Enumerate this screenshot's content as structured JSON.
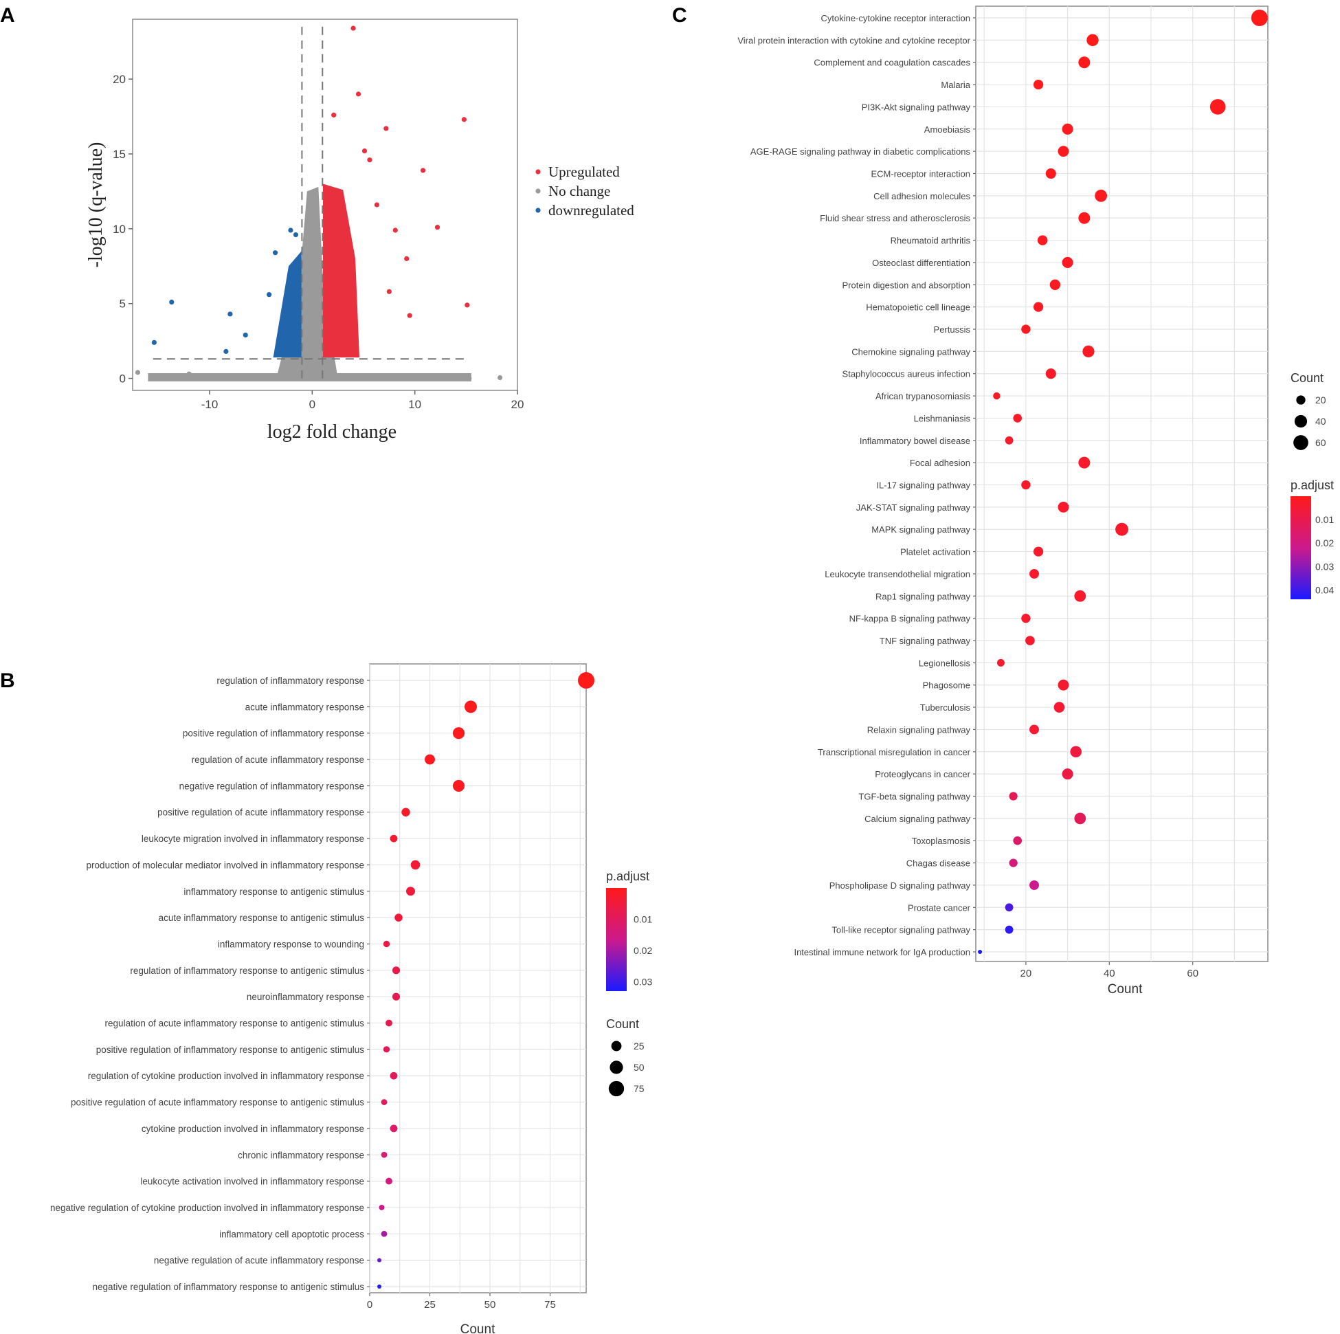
{
  "colors": {
    "up": "#e8303f",
    "nochange": "#9a9a9a",
    "down": "#2166ac",
    "grid": "#e4e4e4",
    "high_p": "#ff1a1a",
    "low_p": "#1a1aff"
  },
  "chart_data": [
    {
      "panel": "A",
      "type": "scatter",
      "xlabel": "log2 fold change",
      "ylabel": "-log10 (q-value)",
      "xlim": [
        -17.5,
        20
      ],
      "ylim": [
        -0.8,
        24
      ],
      "xticks": [
        -10,
        0,
        10,
        20
      ],
      "yticks": [
        0,
        5,
        10,
        15,
        20
      ],
      "thresholds": {
        "fc": [
          -1,
          1
        ],
        "q": 1.3
      },
      "legend": [
        {
          "label": "Upregulated",
          "key": "up"
        },
        {
          "label": "No change",
          "key": "nochange"
        },
        {
          "label": "downregulated",
          "key": "down"
        }
      ],
      "highlighted_points": [
        {
          "x": 4.0,
          "y": 23.4,
          "g": "up"
        },
        {
          "x": 4.5,
          "y": 19.0,
          "g": "up"
        },
        {
          "x": 2.1,
          "y": 17.6,
          "g": "up"
        },
        {
          "x": 7.2,
          "y": 16.7,
          "g": "up"
        },
        {
          "x": 14.8,
          "y": 17.3,
          "g": "up"
        },
        {
          "x": 10.8,
          "y": 13.9,
          "g": "up"
        },
        {
          "x": 12.2,
          "y": 10.1,
          "g": "up"
        },
        {
          "x": 15.1,
          "y": 4.9,
          "g": "up"
        },
        {
          "x": 9.5,
          "y": 4.2,
          "g": "up"
        },
        {
          "x": 5.1,
          "y": 15.2,
          "g": "up"
        },
        {
          "x": 8.1,
          "y": 9.9,
          "g": "up"
        },
        {
          "x": 9.2,
          "y": 8.0,
          "g": "up"
        },
        {
          "x": 7.5,
          "y": 5.8,
          "g": "up"
        },
        {
          "x": 6.3,
          "y": 11.6,
          "g": "up"
        },
        {
          "x": 5.6,
          "y": 14.6,
          "g": "up"
        },
        {
          "x": -13.7,
          "y": 5.1,
          "g": "down"
        },
        {
          "x": -15.4,
          "y": 2.4,
          "g": "down"
        },
        {
          "x": -8.0,
          "y": 4.3,
          "g": "down"
        },
        {
          "x": -6.5,
          "y": 2.9,
          "g": "down"
        },
        {
          "x": -8.4,
          "y": 1.8,
          "g": "down"
        },
        {
          "x": -4.2,
          "y": 5.6,
          "g": "down"
        },
        {
          "x": -3.6,
          "y": 8.4,
          "g": "down"
        },
        {
          "x": -2.1,
          "y": 9.9,
          "g": "down"
        },
        {
          "x": -1.6,
          "y": 9.6,
          "g": "down"
        },
        {
          "x": -17.0,
          "y": 0.4,
          "g": "nochange"
        },
        {
          "x": 18.3,
          "y": 0.05,
          "g": "nochange"
        },
        {
          "x": 15.3,
          "y": 0.0,
          "g": "nochange"
        },
        {
          "x": -12.0,
          "y": 0.3,
          "g": "nochange"
        }
      ]
    },
    {
      "panel": "B",
      "type": "scatter",
      "xlabel": "Count",
      "xlim": [
        0,
        90
      ],
      "xticks": [
        0,
        25,
        50,
        75
      ],
      "color_legend_title": "p.adjust",
      "color_ticks": [
        0.01,
        0.02,
        0.03
      ],
      "padj_range": [
        0.0,
        0.033
      ],
      "size_legend_title": "Count",
      "size_legend": [
        25,
        50,
        75
      ],
      "terms": [
        "regulation of inflammatory response",
        "acute inflammatory response",
        "positive regulation of inflammatory response",
        "regulation of acute inflammatory response",
        "negative regulation of inflammatory response",
        "positive regulation of acute inflammatory response",
        "leukocyte migration involved in inflammatory response",
        "production of molecular mediator involved in inflammatory response",
        "inflammatory response to antigenic stimulus",
        "acute inflammatory response to antigenic stimulus",
        "inflammatory response to wounding",
        "regulation of inflammatory response to antigenic stimulus",
        "neuroinflammatory response",
        "regulation of acute inflammatory response to antigenic stimulus",
        "positive regulation of inflammatory response to antigenic stimulus",
        "regulation of cytokine production involved in inflammatory response",
        "positive regulation of acute inflammatory response to antigenic stimulus",
        "cytokine production involved in inflammatory response",
        "chronic inflammatory response",
        "leukocyte activation involved in inflammatory response",
        "negative regulation of cytokine production involved in inflammatory response",
        "inflammatory cell apoptotic process",
        "negative regulation of acute inflammatory response",
        "negative regulation of inflammatory response to antigenic stimulus"
      ],
      "counts": [
        90,
        42,
        37,
        25,
        37,
        15,
        10,
        19,
        17,
        12,
        7,
        11,
        11,
        8,
        7,
        10,
        6,
        10,
        6,
        8,
        5,
        6,
        4,
        4
      ],
      "padj": [
        0.0,
        0.0005,
        0.0005,
        0.001,
        0.001,
        0.002,
        0.003,
        0.004,
        0.005,
        0.005,
        0.006,
        0.007,
        0.008,
        0.008,
        0.009,
        0.009,
        0.01,
        0.011,
        0.012,
        0.014,
        0.016,
        0.02,
        0.026,
        0.032
      ]
    },
    {
      "panel": "C",
      "type": "scatter",
      "xlabel": "Count",
      "xlim": [
        8,
        78
      ],
      "xticks": [
        20,
        40,
        60
      ],
      "size_legend_title": "Count",
      "size_legend": [
        20,
        40,
        60
      ],
      "color_legend_title": "p.adjust",
      "color_ticks": [
        0.01,
        0.02,
        0.03,
        0.04
      ],
      "padj_range": [
        0.0,
        0.044
      ],
      "terms": [
        "Cytokine-cytokine receptor interaction",
        "Viral protein interaction with cytokine and cytokine receptor",
        "Complement and coagulation cascades",
        "Malaria",
        "PI3K-Akt signaling pathway",
        "Amoebiasis",
        "AGE-RAGE signaling pathway in diabetic complications",
        "ECM-receptor interaction",
        "Cell adhesion molecules",
        "Fluid shear stress and atherosclerosis",
        "Rheumatoid arthritis",
        "Osteoclast differentiation",
        "Protein digestion and absorption",
        "Hematopoietic cell lineage",
        "Pertussis",
        "Chemokine signaling pathway",
        "Staphylococcus aureus infection",
        "African trypanosomiasis",
        "Leishmaniasis",
        "Inflammatory bowel disease",
        "Focal adhesion",
        "IL-17 signaling pathway",
        "JAK-STAT signaling pathway",
        "MAPK signaling pathway",
        "Platelet activation",
        "Leukocyte transendothelial migration",
        "Rap1 signaling pathway",
        "NF-kappa B signaling pathway",
        "TNF signaling pathway",
        "Legionellosis",
        "Phagosome",
        "Tuberculosis",
        "Relaxin signaling pathway",
        "Transcriptional misregulation in cancer",
        "Proteoglycans in cancer",
        "TGF-beta signaling pathway",
        "Calcium signaling pathway",
        "Toxoplasmosis",
        "Chagas disease",
        "Phospholipase D signaling pathway",
        "Prostate cancer",
        "Toll-like receptor signaling pathway",
        "Intestinal immune network for IgA production"
      ],
      "counts": [
        76,
        36,
        34,
        23,
        66,
        30,
        29,
        26,
        38,
        34,
        24,
        30,
        27,
        23,
        20,
        35,
        26,
        13,
        18,
        16,
        34,
        20,
        29,
        43,
        23,
        22,
        33,
        20,
        21,
        14,
        29,
        28,
        22,
        32,
        30,
        17,
        33,
        18,
        17,
        22,
        16,
        16,
        9
      ],
      "padj": [
        0.0,
        0.0,
        0.0,
        0.0005,
        0.0005,
        0.001,
        0.001,
        0.001,
        0.001,
        0.001,
        0.0015,
        0.0015,
        0.0015,
        0.002,
        0.002,
        0.002,
        0.0025,
        0.0025,
        0.0025,
        0.003,
        0.003,
        0.003,
        0.003,
        0.003,
        0.0035,
        0.0035,
        0.0035,
        0.0035,
        0.004,
        0.004,
        0.004,
        0.0045,
        0.0045,
        0.007,
        0.008,
        0.011,
        0.012,
        0.015,
        0.018,
        0.022,
        0.038,
        0.042,
        0.044
      ]
    }
  ],
  "panels": {
    "a": "A",
    "b": "B",
    "c": "C"
  }
}
